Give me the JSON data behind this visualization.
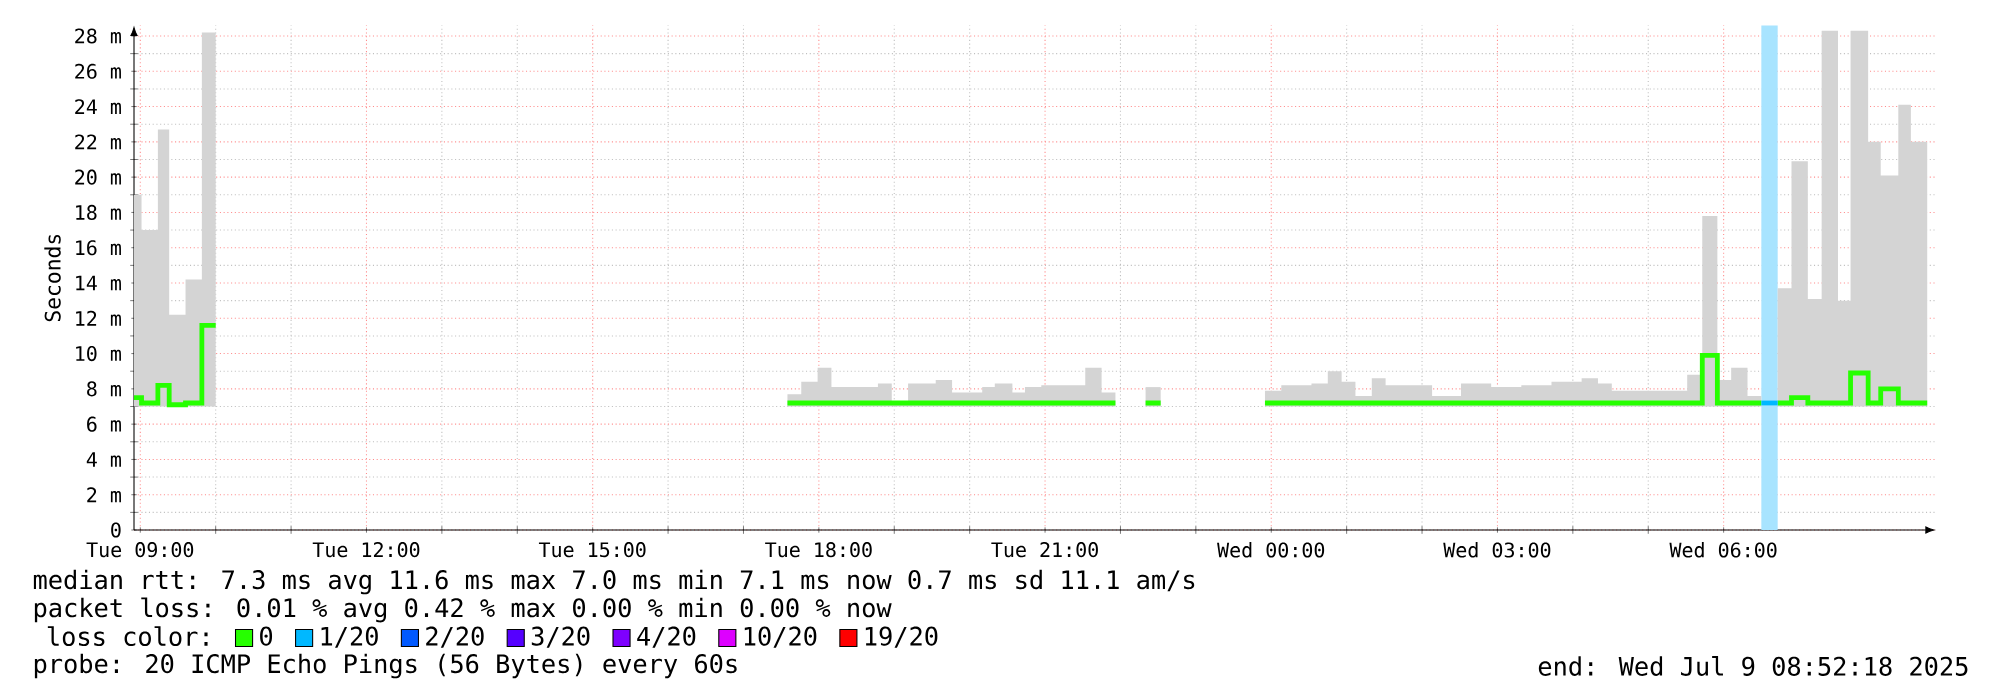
{
  "chart_data": {
    "type": "step",
    "ylabel": "Seconds",
    "legend_title": "loss color:",
    "xlim": [
      "2025-07-08T08:55",
      "2025-07-09T08:49"
    ],
    "ylim": [
      0,
      28.6
    ],
    "xticks": [
      {
        "value": "2025-07-08T09:00",
        "label": "Tue 09:00"
      },
      {
        "value": "2025-07-08T12:00",
        "label": "Tue 12:00"
      },
      {
        "value": "2025-07-08T15:00",
        "label": "Tue 15:00"
      },
      {
        "value": "2025-07-08T18:00",
        "label": "Tue 18:00"
      },
      {
        "value": "2025-07-08T21:00",
        "label": "Tue 21:00"
      },
      {
        "value": "2025-07-09T00:00",
        "label": "Wed 00:00"
      },
      {
        "value": "2025-07-09T03:00",
        "label": "Wed 03:00"
      },
      {
        "value": "2025-07-09T06:00",
        "label": "Wed 06:00"
      }
    ],
    "yticks": [
      0,
      {
        "value": 2,
        "label": "2 m"
      },
      {
        "value": 4,
        "label": "4 m"
      },
      {
        "value": 6,
        "label": "6 m"
      },
      {
        "value": 8,
        "label": "8 m"
      },
      {
        "value": 10,
        "label": "10 m"
      },
      {
        "value": 12,
        "label": "12 m"
      },
      {
        "value": 14,
        "label": "14 m"
      },
      {
        "value": 16,
        "label": "16 m"
      },
      {
        "value": 18,
        "label": "18 m"
      },
      {
        "value": 20,
        "label": "20 m"
      },
      {
        "value": 22,
        "label": "22 m"
      },
      {
        "value": 24,
        "label": "24 m"
      },
      {
        "value": 26,
        "label": "26 m"
      },
      {
        "value": 28,
        "label": "28 m"
      }
    ],
    "grid": true,
    "legend": "bottom",
    "bands": [
      {
        "axis": "x",
        "from": "2025-07-09T06:30",
        "to": "2025-07-09T06:43",
        "color": "#a8e4ff"
      }
    ],
    "series": [
      {
        "name": "0",
        "color": "#26ff00",
        "x": [
          "2025-07-08T08:55",
          "2025-07-08T09:01",
          "2025-07-08T09:14",
          "2025-07-08T09:23",
          "2025-07-08T09:36",
          "2025-07-08T09:49",
          "2025-07-08T10:00",
          "2025-07-08T17:35",
          "2025-07-08T17:46",
          "2025-07-08T17:59",
          "2025-07-08T18:10",
          "2025-07-08T18:47",
          "2025-07-08T18:58",
          "2025-07-08T19:11",
          "2025-07-08T19:33",
          "2025-07-08T19:46",
          "2025-07-08T20:10",
          "2025-07-08T20:20",
          "2025-07-08T20:34",
          "2025-07-08T20:44",
          "2025-07-08T20:57",
          "2025-07-08T21:32",
          "2025-07-08T21:45",
          "2025-07-08T21:56",
          "2025-07-08T22:20",
          "2025-07-08T22:32",
          "2025-07-08T23:55",
          "2025-07-09T00:08",
          "2025-07-09T00:32",
          "2025-07-09T00:45",
          "2025-07-09T00:56",
          "2025-07-09T01:07",
          "2025-07-09T01:20",
          "2025-07-09T01:31",
          "2025-07-09T02:08",
          "2025-07-09T02:31",
          "2025-07-09T02:55",
          "2025-07-09T03:19",
          "2025-07-09T03:43",
          "2025-07-09T04:07",
          "2025-07-09T04:20",
          "2025-07-09T04:31",
          "2025-07-09T05:07",
          "2025-07-09T05:31",
          "2025-07-09T05:43",
          "2025-07-09T05:55",
          "2025-07-09T06:06",
          "2025-07-09T06:19",
          "2025-07-09T06:30",
          "2025-07-09T06:43",
          "2025-07-09T06:54",
          "2025-07-09T07:07",
          "2025-07-09T07:18",
          "2025-07-09T07:31",
          "2025-07-09T07:41",
          "2025-07-09T07:55",
          "2025-07-09T08:05",
          "2025-07-09T08:19",
          "2025-07-09T08:29",
          "2025-07-09T08:42"
        ],
        "values": [
          7.5,
          7.2,
          8.2,
          7.1,
          7.2,
          11.6,
          null,
          7.2,
          7.2,
          7.2,
          7.2,
          7.2,
          7.2,
          7.2,
          7.2,
          7.2,
          7.2,
          7.2,
          7.2,
          7.2,
          7.2,
          7.2,
          7.2,
          null,
          7.2,
          null,
          7.2,
          7.2,
          7.2,
          7.2,
          7.2,
          7.2,
          7.2,
          7.2,
          7.2,
          7.2,
          7.2,
          7.2,
          7.2,
          7.2,
          7.2,
          7.2,
          7.2,
          7.2,
          9.9,
          7.2,
          7.2,
          7.2,
          null,
          7.2,
          7.5,
          7.2,
          7.2,
          7.2,
          8.9,
          7.2,
          8.0,
          7.2,
          7.2,
          7.2
        ],
        "upper": [
          19.0,
          17.0,
          22.7,
          12.2,
          14.2,
          28.2,
          null,
          7.7,
          8.4,
          9.2,
          8.1,
          8.3,
          7.3,
          8.3,
          8.5,
          7.8,
          8.1,
          8.3,
          7.8,
          8.1,
          8.2,
          9.2,
          7.8,
          null,
          8.1,
          null,
          7.9,
          8.2,
          8.3,
          9.0,
          8.4,
          7.6,
          8.6,
          8.2,
          7.6,
          8.3,
          8.1,
          8.2,
          8.4,
          8.6,
          8.3,
          7.9,
          7.9,
          8.8,
          17.8,
          8.5,
          9.2,
          7.6,
          null,
          13.7,
          20.9,
          13.1,
          28.3,
          13.0,
          28.3,
          22.0,
          20.1,
          24.1,
          22.0,
          22.0
        ],
        "lower": [
          7.0,
          7.0,
          7.0,
          7.0,
          7.0,
          7.0,
          null,
          7.0,
          7.0,
          7.0,
          7.0,
          7.0,
          7.0,
          7.0,
          7.0,
          7.0,
          7.0,
          7.0,
          7.0,
          7.0,
          7.0,
          7.0,
          7.0,
          null,
          7.0,
          null,
          7.0,
          7.0,
          7.0,
          7.0,
          7.0,
          7.0,
          7.0,
          7.0,
          7.0,
          7.0,
          7.0,
          7.0,
          7.0,
          7.0,
          7.0,
          7.0,
          7.0,
          7.0,
          7.0,
          7.0,
          7.0,
          7.0,
          null,
          7.0,
          7.0,
          7.0,
          7.0,
          7.0,
          7.0,
          7.0,
          7.0,
          7.0,
          7.0,
          7.0
        ]
      },
      {
        "name": "1/20",
        "color": "#00b8ff",
        "x": [
          "2025-07-09T06:30",
          "2025-07-09T06:43"
        ],
        "values": [
          7.2,
          7.2
        ]
      },
      {
        "name": "2/20",
        "color": "#0059ff",
        "values": [
          null
        ]
      },
      {
        "name": "3/20",
        "color": "#5500ff",
        "values": [
          null
        ]
      },
      {
        "name": "4/20",
        "color": "#7e00ff",
        "values": [
          null
        ]
      },
      {
        "name": "10/20",
        "color": "#dd00ff",
        "values": [
          null
        ]
      },
      {
        "name": "19/20",
        "color": "#ff0000",
        "values": [
          null
        ]
      }
    ],
    "annotations": [
      "median rtt:  7.3 ms avg  11.6 ms max  7.0 ms min  7.1 ms now  0.7 ms sd  11.1   am/s",
      "packet loss: 0.01 % avg  0.42 % max  0.00 % min  0.00 % now",
      "probe:       20 ICMP Echo Pings (56 Bytes) every 60s",
      "end: Wed Jul  9 08:52:18 2025"
    ]
  }
}
